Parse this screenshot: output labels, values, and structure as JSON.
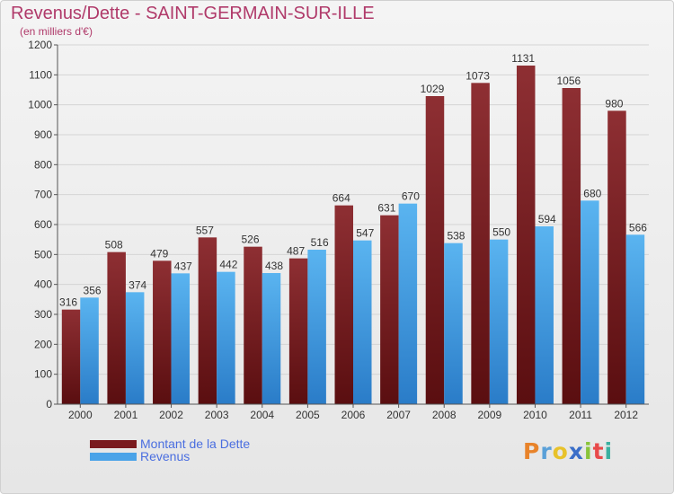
{
  "header": {
    "title": "Revenus/Dette - SAINT-GERMAIN-SUR-ILLE",
    "subtitle": "(en milliers d'€)"
  },
  "chart_data": {
    "type": "bar",
    "categories": [
      "2000",
      "2001",
      "2002",
      "2003",
      "2004",
      "2005",
      "2006",
      "2007",
      "2008",
      "2009",
      "2010",
      "2011",
      "2012"
    ],
    "series": [
      {
        "name": "Montant de la Dette",
        "color": "#8b2a2e",
        "values": [
          316,
          508,
          479,
          557,
          526,
          487,
          664,
          631,
          1029,
          1073,
          1131,
          1056,
          980
        ]
      },
      {
        "name": "Revenus",
        "color": "#4aa3e8",
        "values": [
          356,
          374,
          437,
          442,
          438,
          516,
          547,
          670,
          538,
          550,
          594,
          680,
          566
        ]
      }
    ],
    "ylim": [
      0,
      1200
    ],
    "yticks": [
      0,
      100,
      200,
      300,
      400,
      500,
      600,
      700,
      800,
      900,
      1000,
      1100,
      1200
    ],
    "grid": true,
    "legend": "bottom-left"
  },
  "legend": {
    "items": [
      {
        "label": "Montant de la Dette",
        "color": "#7a1a1e"
      },
      {
        "label": "Revenus",
        "color": "#4aa3e8"
      }
    ]
  },
  "logo": {
    "letters": [
      "P",
      "r",
      "o",
      "x",
      "i",
      "t",
      "i"
    ],
    "colors": [
      "#e8832a",
      "#5aa0d8",
      "#e8c22a",
      "#3a6ec8",
      "#8ac43a",
      "#e84a4a",
      "#3ab0a0"
    ]
  }
}
